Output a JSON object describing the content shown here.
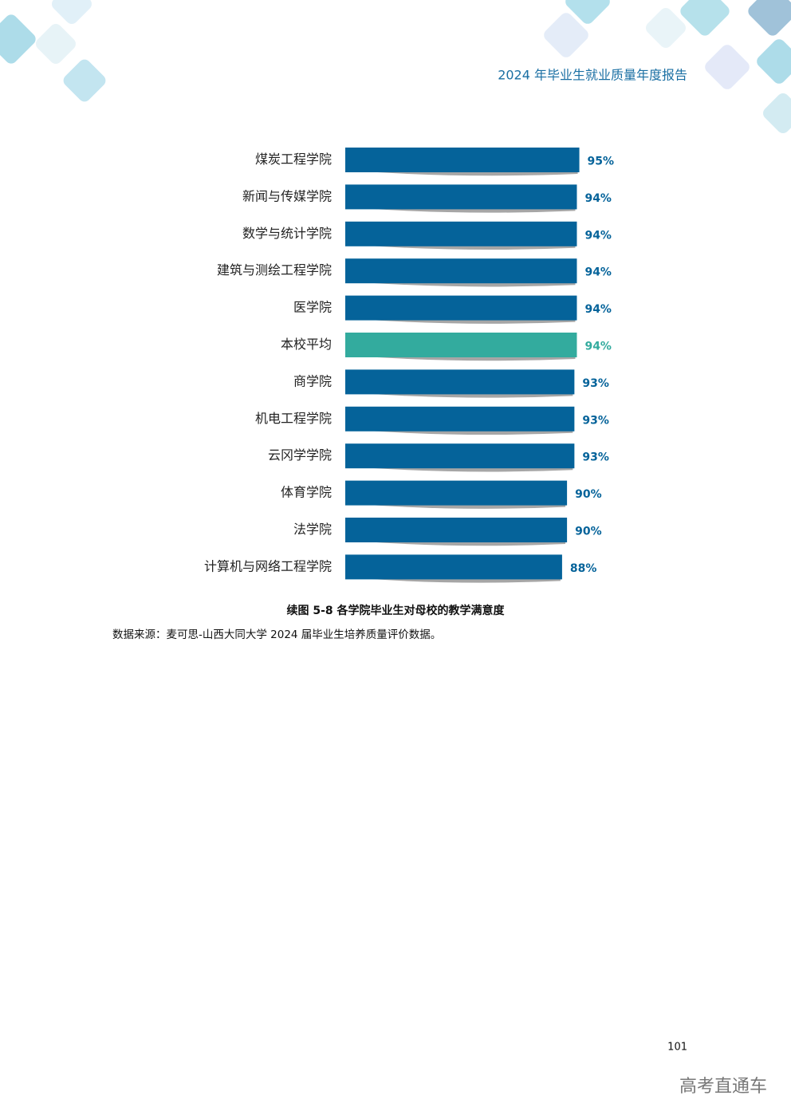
{
  "header": {
    "title": "2024 年毕业生就业质量年度报告"
  },
  "chart_data": {
    "type": "hbar",
    "title": "续图 5-8  各学院毕业生对母校的教学满意度",
    "categories": [
      "煤炭工程学院",
      "新闻与传媒学院",
      "数学与统计学院",
      "建筑与测绘工程学院",
      "医学院",
      "本校平均",
      "商学院",
      "机电工程学院",
      "云冈学学院",
      "体育学院",
      "法学院",
      "计算机与网络工程学院"
    ],
    "values": [
      95,
      94,
      94,
      94,
      94,
      94,
      93,
      93,
      93,
      90,
      90,
      88
    ],
    "value_labels": [
      "95%",
      "94%",
      "94%",
      "94%",
      "94%",
      "94%",
      "93%",
      "93%",
      "93%",
      "90%",
      "90%",
      "88%"
    ],
    "colors": [
      "#05639a",
      "#05639a",
      "#05639a",
      "#05639a",
      "#05639a",
      "#33ab9e",
      "#05639a",
      "#05639a",
      "#05639a",
      "#05639a",
      "#05639a",
      "#05639a"
    ],
    "xlim": [
      0,
      100
    ]
  },
  "source": "数据来源：麦可思-山西大同大学 2024 届毕业生培养质量评价数据。",
  "page_number": "101",
  "watermark": "高考直通车"
}
